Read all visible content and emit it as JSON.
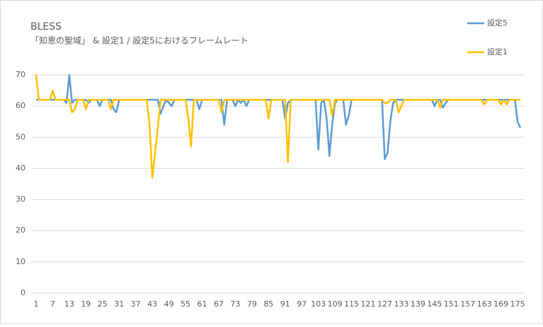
{
  "chart_data": {
    "type": "line",
    "title": "BLESS",
    "subtitle": "「知恵の聖域」 & 設定1 / 設定5におけるフレームレート",
    "categories": [
      "1",
      null,
      null,
      null,
      null,
      null,
      "7",
      null,
      null,
      null,
      null,
      null,
      "13",
      null,
      null,
      null,
      null,
      null,
      "19",
      null,
      null,
      null,
      null,
      null,
      "25",
      null,
      null,
      null,
      null,
      null,
      "31",
      null,
      null,
      null,
      null,
      null,
      "37",
      null,
      null,
      null,
      null,
      null,
      "43",
      null,
      null,
      null,
      null,
      null,
      "49",
      null,
      null,
      null,
      null,
      null,
      "55",
      null,
      null,
      null,
      null,
      null,
      "61",
      null,
      null,
      null,
      null,
      null,
      "67",
      null,
      null,
      null,
      null,
      null,
      "73",
      null,
      null,
      null,
      null,
      null,
      "79",
      null,
      null,
      null,
      null,
      null,
      "85",
      null,
      null,
      null,
      null,
      null,
      "91",
      null,
      null,
      null,
      null,
      null,
      "97",
      null,
      null,
      null,
      null,
      null,
      "103",
      null,
      null,
      null,
      null,
      null,
      "109",
      null,
      null,
      null,
      null,
      null,
      "115",
      null,
      null,
      null,
      null,
      null,
      "121",
      null,
      null,
      null,
      null,
      null,
      "127",
      null,
      null,
      null,
      null,
      null,
      "133",
      null,
      null,
      null,
      null,
      null,
      "139",
      null,
      null,
      null,
      null,
      null,
      "145",
      null,
      null,
      null,
      null,
      null,
      "151",
      null,
      null,
      null,
      null,
      null,
      "157",
      null,
      null,
      null,
      null,
      null,
      "163",
      null,
      null,
      null,
      null,
      null,
      "169",
      null,
      null,
      null,
      null,
      null,
      "175",
      null
    ],
    "series": [
      {
        "name": "設定5",
        "color": "#5b9bd5",
        "values": [
          62,
          62,
          62,
          62,
          62,
          62,
          62,
          62,
          62,
          62,
          62,
          61,
          70,
          61,
          62,
          62,
          62,
          62,
          62,
          61,
          62,
          62,
          62,
          60,
          62,
          62,
          62,
          62,
          59,
          58,
          62,
          62,
          62,
          62,
          62,
          62,
          62,
          62,
          62,
          62,
          62,
          62,
          62,
          62,
          62,
          57.5,
          60,
          62,
          61,
          60,
          62,
          62,
          62,
          62,
          62,
          62,
          62,
          62,
          62,
          59,
          62,
          62,
          62,
          62,
          62,
          62,
          62,
          62,
          54,
          62,
          62,
          62,
          60,
          62,
          61,
          62,
          60,
          62,
          62,
          62,
          62,
          62,
          62,
          62,
          62,
          62,
          62,
          62,
          62,
          62,
          56,
          61,
          62,
          62,
          62,
          62,
          62,
          62,
          62,
          62,
          62,
          62,
          46,
          61,
          62,
          56,
          44,
          54,
          61,
          62,
          62,
          62,
          54,
          57,
          62,
          62,
          62,
          62,
          62,
          62,
          62,
          62,
          62,
          62,
          62,
          62,
          43,
          45,
          55,
          61,
          62,
          62,
          62,
          62,
          62,
          62,
          62,
          62,
          62,
          62,
          62,
          62,
          62,
          62,
          60,
          62,
          62,
          59.5,
          61,
          62,
          62,
          62,
          62,
          62,
          62,
          62,
          62,
          62,
          62,
          62,
          62,
          62,
          62,
          62,
          62,
          62,
          62,
          62,
          62,
          62,
          62,
          62,
          62,
          62,
          55,
          53
        ]
      },
      {
        "name": "設定1",
        "color": "#ffc000",
        "values": [
          70,
          62,
          62,
          62,
          62,
          62,
          65,
          62,
          62,
          62,
          62,
          62,
          62,
          58,
          59,
          62,
          62,
          62,
          59,
          62,
          62,
          62,
          62,
          62,
          62,
          62,
          62,
          59,
          62,
          62,
          62,
          62,
          62,
          62,
          62,
          62,
          62,
          62,
          62,
          62,
          62,
          54,
          37,
          45,
          53,
          62,
          62,
          62,
          62,
          62,
          62,
          62,
          62,
          62,
          62,
          56,
          47,
          62,
          62,
          62,
          62,
          62,
          62,
          62,
          62,
          62,
          62,
          58,
          62,
          62,
          62,
          62,
          62,
          62,
          62,
          62,
          62,
          62,
          62,
          62,
          62,
          62,
          62,
          62,
          56,
          62,
          62,
          62,
          62,
          62,
          62,
          42,
          62,
          62,
          62,
          62,
          62,
          62,
          62,
          62,
          62,
          62,
          62,
          62,
          62,
          62,
          62,
          57,
          62,
          62,
          62,
          62,
          62,
          62,
          62,
          62,
          62,
          62,
          62,
          62,
          62,
          62,
          62,
          62,
          62,
          62,
          61,
          61,
          62,
          62,
          62,
          58,
          60,
          62,
          62,
          62,
          62,
          62,
          62,
          62,
          62,
          62,
          62,
          62,
          62,
          62,
          59.5,
          62,
          62,
          62,
          62,
          62,
          62,
          62,
          62,
          62,
          62,
          62,
          62,
          62,
          62,
          62,
          60.5,
          62,
          62,
          62,
          62,
          62,
          60.5,
          62,
          60.5,
          62,
          62,
          62,
          62,
          62
        ]
      }
    ],
    "ylim": [
      0,
      70
    ],
    "yticks": [
      0,
      10,
      20,
      30,
      40,
      50,
      60,
      70
    ],
    "grid": true,
    "legend": "top-right"
  }
}
